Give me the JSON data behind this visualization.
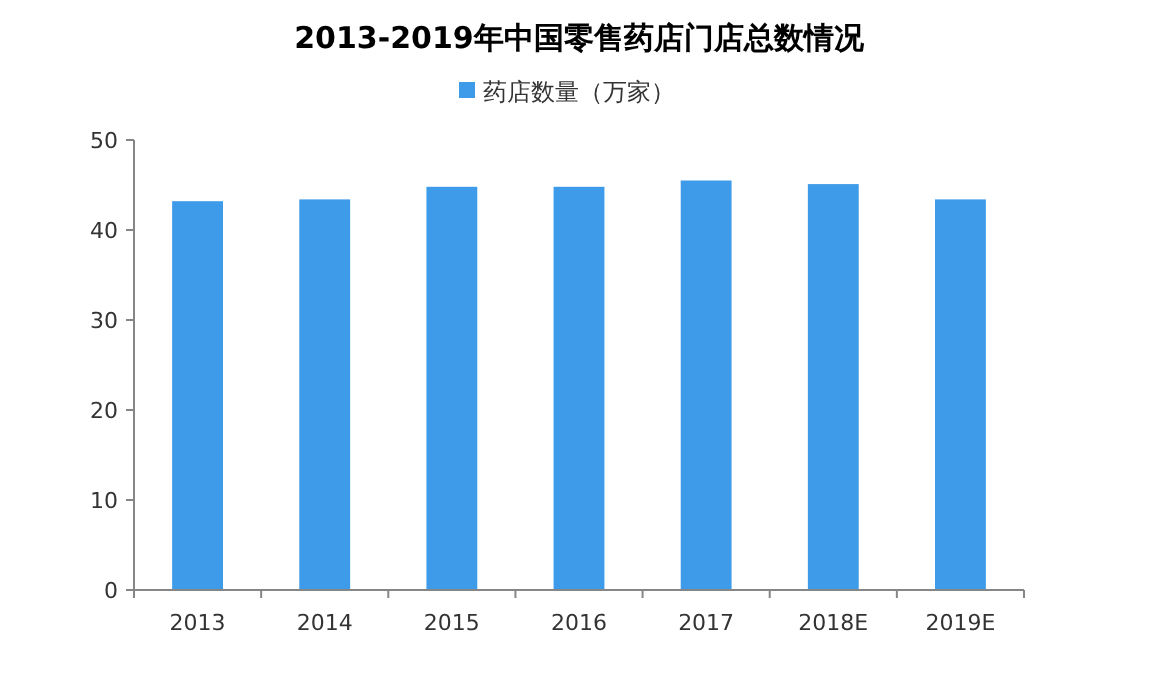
{
  "chart_data": {
    "type": "bar",
    "title": "2013-2019年中国零售药店门店总数情况",
    "categories": [
      "2013",
      "2014",
      "2015",
      "2016",
      "2017",
      "2018E",
      "2019E"
    ],
    "series": [
      {
        "name": "药店数量（万家）",
        "color": "#3d9be9",
        "values": [
          43.2,
          43.4,
          44.8,
          44.8,
          45.5,
          45.1,
          43.4
        ]
      }
    ],
    "ylim": [
      0,
      50
    ],
    "yticks": [
      0,
      10,
      20,
      30,
      40,
      50
    ],
    "grid": false,
    "legend": "top"
  }
}
